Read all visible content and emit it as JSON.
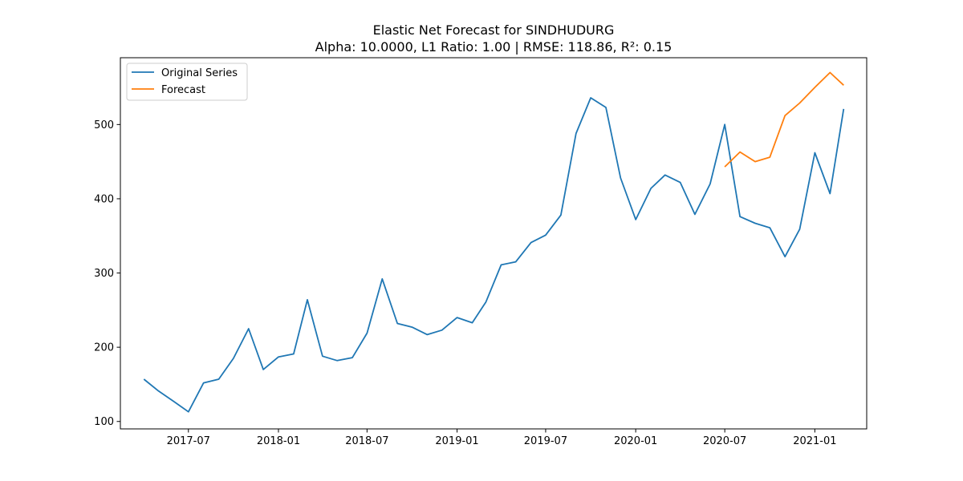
{
  "chart_data": {
    "type": "line",
    "title": "Elastic Net Forecast for SINDHUDURG",
    "subtitle": "Alpha: 10.0000, L1 Ratio: 1.00 | RMSE: 118.86, R²: 0.15",
    "xlabel": "",
    "ylabel": "",
    "x_ticks": [
      "2017-07",
      "2018-01",
      "2018-07",
      "2019-01",
      "2019-07",
      "2020-01",
      "2020-07",
      "2021-01"
    ],
    "y_ticks": [
      100,
      200,
      300,
      400,
      500
    ],
    "ylim": [
      90,
      590
    ],
    "xlim": [
      "2017-02-12",
      "2021-04-17"
    ],
    "legend_position": "top-left",
    "grid": false,
    "series": [
      {
        "name": "Original Series",
        "color": "#1f77b4",
        "points": [
          [
            "2017-04-01",
            157
          ],
          [
            "2017-05-01",
            141
          ],
          [
            "2017-06-01",
            127
          ],
          [
            "2017-07-01",
            113
          ],
          [
            "2017-08-01",
            152
          ],
          [
            "2017-09-01",
            157
          ],
          [
            "2017-10-01",
            185
          ],
          [
            "2017-11-01",
            225
          ],
          [
            "2017-12-01",
            170
          ],
          [
            "2018-01-01",
            187
          ],
          [
            "2018-02-01",
            191
          ],
          [
            "2018-03-01",
            264
          ],
          [
            "2018-04-01",
            188
          ],
          [
            "2018-05-01",
            182
          ],
          [
            "2018-06-01",
            186
          ],
          [
            "2018-07-01",
            219
          ],
          [
            "2018-08-01",
            292
          ],
          [
            "2018-09-01",
            232
          ],
          [
            "2018-10-01",
            227
          ],
          [
            "2018-11-01",
            217
          ],
          [
            "2018-12-01",
            223
          ],
          [
            "2019-01-01",
            240
          ],
          [
            "2019-02-01",
            233
          ],
          [
            "2019-03-01",
            261
          ],
          [
            "2019-04-01",
            311
          ],
          [
            "2019-05-01",
            315
          ],
          [
            "2019-06-01",
            341
          ],
          [
            "2019-07-01",
            351
          ],
          [
            "2019-08-01",
            378
          ],
          [
            "2019-09-01",
            488
          ],
          [
            "2019-10-01",
            536
          ],
          [
            "2019-11-01",
            523
          ],
          [
            "2019-12-01",
            428
          ],
          [
            "2020-01-01",
            372
          ],
          [
            "2020-02-01",
            414
          ],
          [
            "2020-03-01",
            432
          ],
          [
            "2020-04-01",
            422
          ],
          [
            "2020-05-01",
            379
          ],
          [
            "2020-06-01",
            420
          ],
          [
            "2020-07-01",
            500
          ],
          [
            "2020-08-01",
            376
          ],
          [
            "2020-09-01",
            367
          ],
          [
            "2020-10-01",
            361
          ],
          [
            "2020-11-01",
            322
          ],
          [
            "2020-12-01",
            359
          ],
          [
            "2021-01-01",
            462
          ],
          [
            "2021-02-01",
            407
          ],
          [
            "2021-03-01",
            521
          ]
        ]
      },
      {
        "name": "Forecast",
        "color": "#ff7f0e",
        "points": [
          [
            "2020-07-01",
            443
          ],
          [
            "2020-08-01",
            463
          ],
          [
            "2020-09-01",
            450
          ],
          [
            "2020-10-01",
            456
          ],
          [
            "2020-11-01",
            512
          ],
          [
            "2020-12-01",
            529
          ],
          [
            "2021-01-01",
            550
          ],
          [
            "2021-02-01",
            570
          ],
          [
            "2021-03-01",
            553
          ]
        ]
      }
    ]
  }
}
